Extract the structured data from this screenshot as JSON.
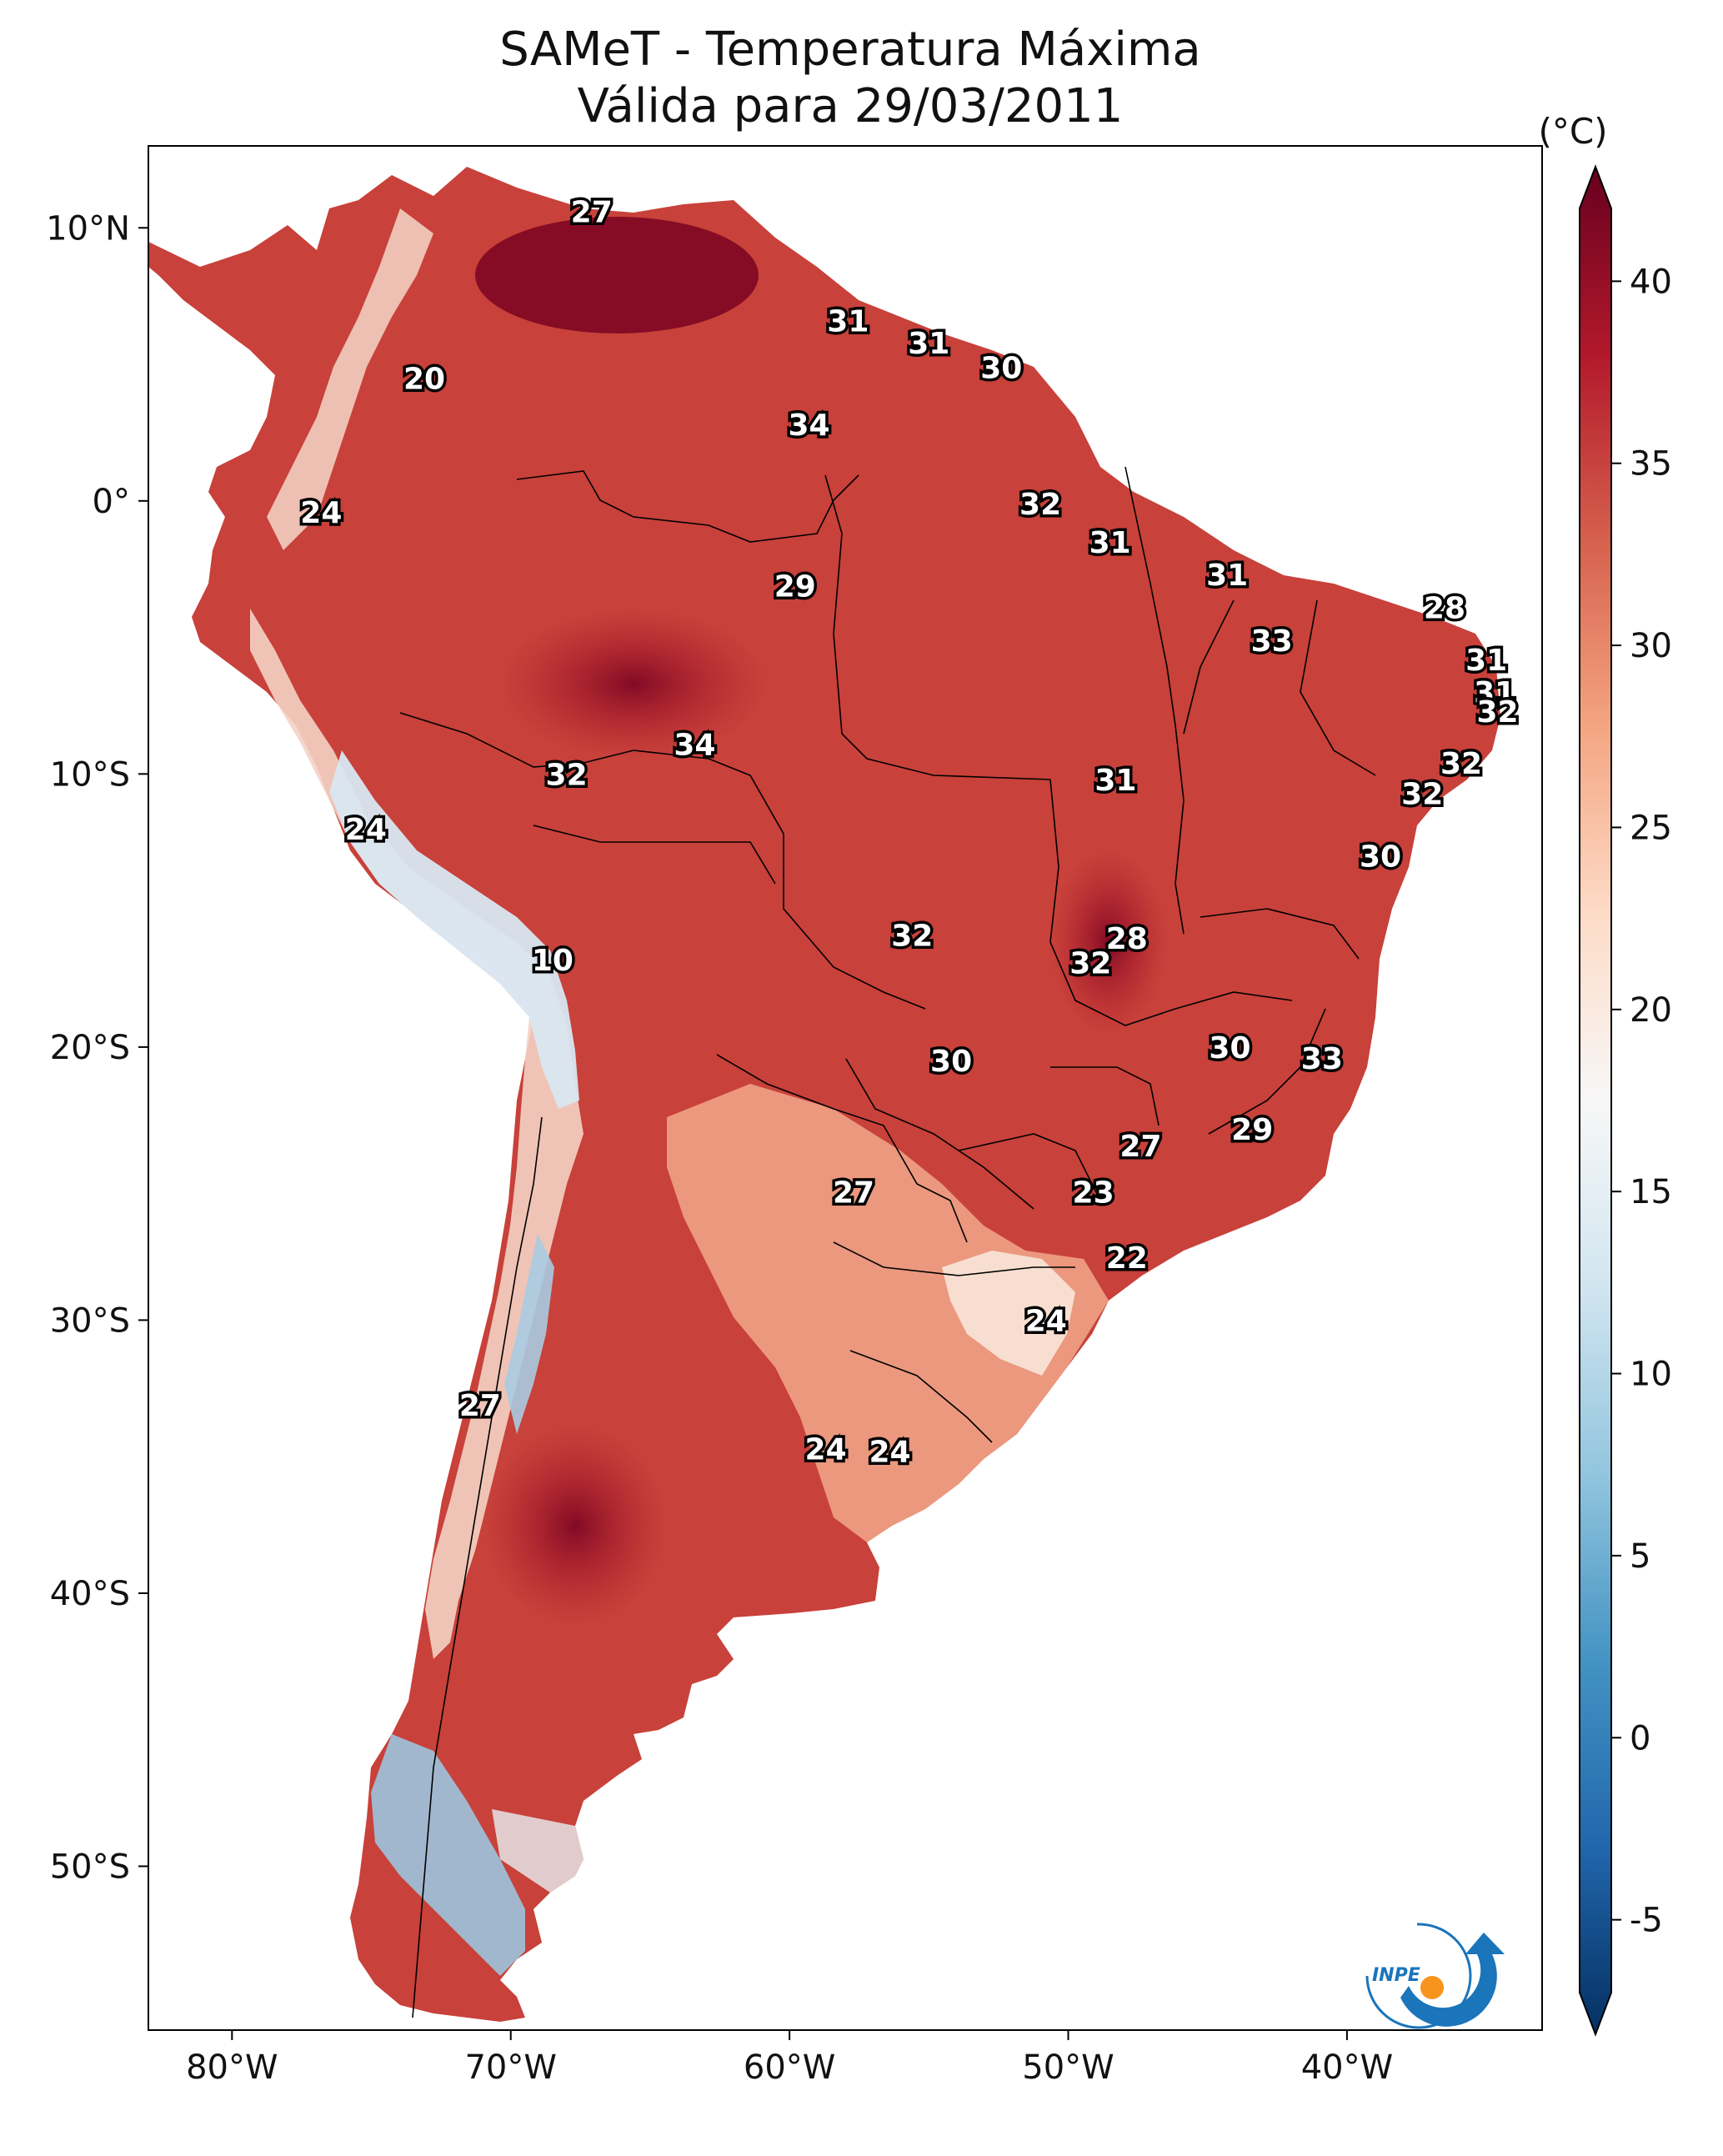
{
  "title_line1": "SAMeT - Temperatura Máxima",
  "title_line2": "Válida para 29/03/2011",
  "map": {
    "lon_range": [
      -83,
      -33
    ],
    "lat_range": [
      -56,
      13
    ],
    "lon_ticks": [
      {
        "value": -80,
        "label": "80°W"
      },
      {
        "value": -70,
        "label": "70°W"
      },
      {
        "value": -60,
        "label": "60°W"
      },
      {
        "value": -50,
        "label": "50°W"
      },
      {
        "value": -40,
        "label": "40°W"
      }
    ],
    "lat_ticks": [
      {
        "value": 10,
        "label": "10°N"
      },
      {
        "value": 0,
        "label": "0°"
      },
      {
        "value": -10,
        "label": "10°S"
      },
      {
        "value": -20,
        "label": "20°S"
      },
      {
        "value": -30,
        "label": "30°S"
      },
      {
        "value": -40,
        "label": "40°S"
      },
      {
        "value": -50,
        "label": "50°S"
      }
    ],
    "temperature_labels": [
      {
        "lon": -67.1,
        "lat": 10.6,
        "text": "27"
      },
      {
        "lon": -57.9,
        "lat": 6.6,
        "text": "31"
      },
      {
        "lon": -55.0,
        "lat": 5.8,
        "text": "31"
      },
      {
        "lon": -52.4,
        "lat": 4.9,
        "text": "30"
      },
      {
        "lon": -73.1,
        "lat": 4.5,
        "text": "20"
      },
      {
        "lon": -59.3,
        "lat": 2.8,
        "text": "34"
      },
      {
        "lon": -51.0,
        "lat": -0.1,
        "text": "32"
      },
      {
        "lon": -76.8,
        "lat": -0.4,
        "text": "24"
      },
      {
        "lon": -48.5,
        "lat": -1.5,
        "text": "31"
      },
      {
        "lon": -59.8,
        "lat": -3.1,
        "text": "29"
      },
      {
        "lon": -44.3,
        "lat": -2.7,
        "text": "31"
      },
      {
        "lon": -36.5,
        "lat": -3.9,
        "text": "28"
      },
      {
        "lon": -42.7,
        "lat": -5.1,
        "text": "33"
      },
      {
        "lon": -35.0,
        "lat": -5.8,
        "text": "31"
      },
      {
        "lon": -34.7,
        "lat": -7.0,
        "text": "31"
      },
      {
        "lon": -34.6,
        "lat": -7.7,
        "text": "32"
      },
      {
        "lon": -63.4,
        "lat": -8.9,
        "text": "34"
      },
      {
        "lon": -68.0,
        "lat": -10.0,
        "text": "32"
      },
      {
        "lon": -35.9,
        "lat": -9.6,
        "text": "32"
      },
      {
        "lon": -48.3,
        "lat": -10.2,
        "text": "31"
      },
      {
        "lon": -37.3,
        "lat": -10.7,
        "text": "32"
      },
      {
        "lon": -75.2,
        "lat": -12.0,
        "text": "24"
      },
      {
        "lon": -38.8,
        "lat": -13.0,
        "text": "30"
      },
      {
        "lon": -55.6,
        "lat": -15.9,
        "text": "32"
      },
      {
        "lon": -47.9,
        "lat": -16.0,
        "text": "28"
      },
      {
        "lon": -49.2,
        "lat": -16.9,
        "text": "32"
      },
      {
        "lon": -68.5,
        "lat": -16.8,
        "text": "10"
      },
      {
        "lon": -44.2,
        "lat": -20.0,
        "text": "30"
      },
      {
        "lon": -40.9,
        "lat": -20.4,
        "text": "33"
      },
      {
        "lon": -54.2,
        "lat": -20.5,
        "text": "30"
      },
      {
        "lon": -43.4,
        "lat": -23.0,
        "text": "29"
      },
      {
        "lon": -47.4,
        "lat": -23.6,
        "text": "27"
      },
      {
        "lon": -57.7,
        "lat": -25.3,
        "text": "27"
      },
      {
        "lon": -49.1,
        "lat": -25.3,
        "text": "23"
      },
      {
        "lon": -47.9,
        "lat": -27.7,
        "text": "22"
      },
      {
        "lon": -50.8,
        "lat": -30.0,
        "text": "24"
      },
      {
        "lon": -71.1,
        "lat": -33.1,
        "text": "27"
      },
      {
        "lon": -58.7,
        "lat": -34.7,
        "text": "24"
      },
      {
        "lon": -56.4,
        "lat": -34.8,
        "text": "24"
      }
    ]
  },
  "colorbar": {
    "unit": "(°C)",
    "min": -7,
    "max": 42,
    "colors": [
      "#053061",
      "#2166ac",
      "#4393c3",
      "#92c5de",
      "#d1e5f0",
      "#f7f7f7",
      "#fddbc7",
      "#f4a582",
      "#d6604d",
      "#b2182b",
      "#67001f"
    ],
    "ticks": [
      {
        "value": -5,
        "label": "-5"
      },
      {
        "value": 0,
        "label": "0"
      },
      {
        "value": 5,
        "label": "5"
      },
      {
        "value": 10,
        "label": "10"
      },
      {
        "value": 15,
        "label": "15"
      },
      {
        "value": 20,
        "label": "20"
      },
      {
        "value": 25,
        "label": "25"
      },
      {
        "value": 30,
        "label": "30"
      },
      {
        "value": 35,
        "label": "35"
      },
      {
        "value": 40,
        "label": "40"
      }
    ]
  },
  "logo": {
    "text": "INPE",
    "accent": "#f7941d",
    "brand": "#1a75bb"
  }
}
